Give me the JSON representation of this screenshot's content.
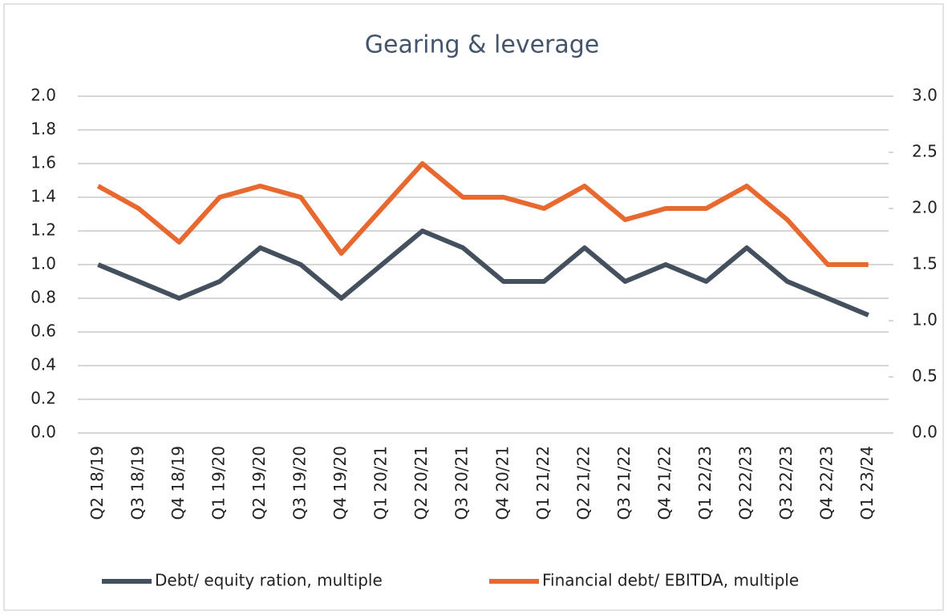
{
  "chart_data": {
    "type": "line",
    "title": "Gearing & leverage",
    "categories": [
      "Q2 18/19",
      "Q3 18/19",
      "Q4 18/19",
      "Q1 19/20",
      "Q2 19/20",
      "Q3 19/20",
      "Q4 19/20",
      "Q1 20/21",
      "Q2 20/21",
      "Q3 20/21",
      "Q4 20/21",
      "Q1 21/22",
      "Q2 21/22",
      "Q3 21/22",
      "Q4 21/22",
      "Q1 22/23",
      "Q2 22/23",
      "Q3 22/23",
      "Q4 22/23",
      "Q1 23/24"
    ],
    "series": [
      {
        "name": "Debt/ equity ration, multiple",
        "color": "#44505e",
        "values": [
          1.0,
          0.9,
          0.8,
          0.9,
          1.1,
          1.0,
          0.8,
          1.0,
          1.2,
          1.1,
          0.9,
          0.9,
          1.1,
          0.9,
          1.0,
          0.9,
          1.1,
          0.9,
          0.8,
          0.7
        ]
      },
      {
        "name": "Financial debt/ EBITDA, multiple",
        "color": "#e8692f",
        "axis": "y2",
        "values": [
          2.2,
          2.0,
          1.7,
          2.1,
          2.2,
          2.1,
          1.6,
          2.0,
          2.4,
          2.1,
          2.1,
          2.0,
          2.2,
          1.9,
          2.0,
          2.0,
          2.2,
          1.9,
          1.5,
          1.5
        ]
      }
    ],
    "ylim": [
      0,
      2.0
    ],
    "yticks": [
      {
        "value": 0,
        "label": "0.0"
      },
      {
        "value": 0.2,
        "label": "0.2"
      },
      {
        "value": 0.4,
        "label": "0.4"
      },
      {
        "value": 0.6,
        "label": "0.6"
      },
      {
        "value": 0.8,
        "label": "0.8"
      },
      {
        "value": 1.0,
        "label": "1.0"
      },
      {
        "value": 1.2,
        "label": "1.2"
      },
      {
        "value": 1.4,
        "label": "1.4"
      },
      {
        "value": 1.6,
        "label": "1.6"
      },
      {
        "value": 1.8,
        "label": "1.8"
      },
      {
        "value": 2.0,
        "label": "2.0"
      }
    ],
    "y2lim": [
      0,
      3.0
    ],
    "y2ticks": [
      {
        "value": 0,
        "label": "0.0"
      },
      {
        "value": 0.5,
        "label": "0.5"
      },
      {
        "value": 1.0,
        "label": "1.0"
      },
      {
        "value": 1.5,
        "label": "1.5"
      },
      {
        "value": 2.0,
        "label": "2.0"
      },
      {
        "value": 2.5,
        "label": "2.5"
      },
      {
        "value": 3.0,
        "label": "3.0"
      }
    ],
    "grid": true
  }
}
